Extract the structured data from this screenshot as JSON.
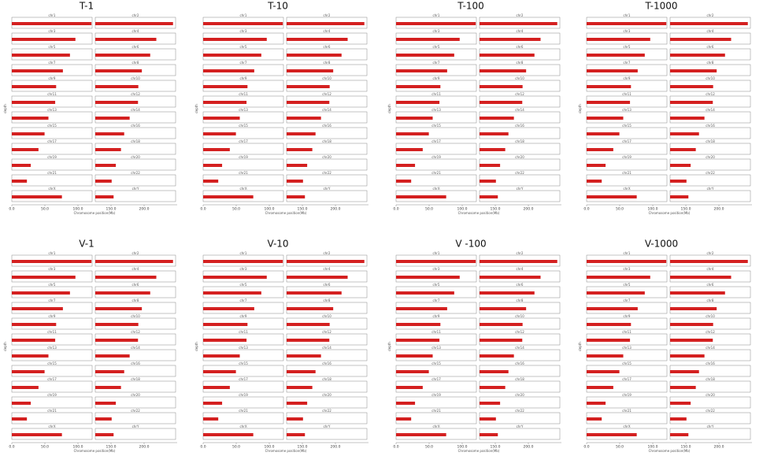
{
  "chart_data": [
    {
      "type": "bar",
      "title": "T-1",
      "xlabel": "Chromosome position(Mb)",
      "ylabel": "depth",
      "color": "#d42020",
      "xlim": [
        0,
        250
      ],
      "xticks": [
        {
          "value": 0,
          "label": "0.0"
        },
        {
          "value": 50,
          "label": "50.0"
        },
        {
          "value": 100,
          "label": "100.0"
        },
        {
          "value": 150,
          "label": "150.0"
        },
        {
          "value": 200,
          "label": "200.0"
        }
      ],
      "categories": [
        "chr1",
        "chr2",
        "chr3",
        "chr4",
        "chr5",
        "chr6",
        "chr7",
        "chr8",
        "chr9",
        "chr10",
        "chr11",
        "chr12",
        "chr13",
        "chr14",
        "chr15",
        "chr16",
        "chr17",
        "chr18",
        "chr19",
        "chr20",
        "chr21",
        "chr22",
        "chrX",
        "chrY"
      ],
      "values": [
        248,
        242,
        198,
        190,
        181,
        171,
        159,
        145,
        138,
        134,
        135,
        133,
        114,
        107,
        102,
        90,
        83,
        80,
        59,
        64,
        47,
        51,
        156,
        57
      ]
    },
    {
      "type": "bar",
      "title": "T-10",
      "xlabel": "Chromosome position(Mb)",
      "ylabel": "depth",
      "color": "#d42020",
      "xlim": [
        0,
        250
      ],
      "xticks": [
        {
          "value": 0,
          "label": "0.0"
        },
        {
          "value": 50,
          "label": "50.0"
        },
        {
          "value": 100,
          "label": "100.0"
        },
        {
          "value": 150,
          "label": "150.0"
        },
        {
          "value": 200,
          "label": "200.0"
        }
      ],
      "categories": [
        "chr1",
        "chr2",
        "chr3",
        "chr4",
        "chr5",
        "chr6",
        "chr7",
        "chr8",
        "chr9",
        "chr10",
        "chr11",
        "chr12",
        "chr13",
        "chr14",
        "chr15",
        "chr16",
        "chr17",
        "chr18",
        "chr19",
        "chr20",
        "chr21",
        "chr22",
        "chrX",
        "chrY"
      ],
      "values": [
        248,
        242,
        198,
        190,
        181,
        171,
        159,
        145,
        138,
        134,
        135,
        133,
        114,
        107,
        102,
        90,
        83,
        80,
        59,
        64,
        47,
        51,
        156,
        57
      ]
    },
    {
      "type": "bar",
      "title": "T-100",
      "xlabel": "Chromosome position(Mb)",
      "ylabel": "depth",
      "color": "#d42020",
      "xlim": [
        0,
        250
      ],
      "xticks": [
        {
          "value": 0,
          "label": "0.0"
        },
        {
          "value": 50,
          "label": "50.0"
        },
        {
          "value": 100,
          "label": "100.0"
        },
        {
          "value": 150,
          "label": "150.0"
        },
        {
          "value": 200,
          "label": "200.0"
        }
      ],
      "categories": [
        "chr1",
        "chr2",
        "chr3",
        "chr4",
        "chr5",
        "chr6",
        "chr7",
        "chr8",
        "chr9",
        "chr10",
        "chr11",
        "chr12",
        "chr13",
        "chr14",
        "chr15",
        "chr16",
        "chr17",
        "chr18",
        "chr19",
        "chr20",
        "chr21",
        "chr22",
        "chrX",
        "chrY"
      ],
      "values": [
        248,
        242,
        198,
        190,
        181,
        171,
        159,
        145,
        138,
        134,
        135,
        133,
        114,
        107,
        102,
        90,
        83,
        80,
        59,
        64,
        47,
        51,
        156,
        57
      ]
    },
    {
      "type": "bar",
      "title": "T-1000",
      "xlabel": "Chromosome position(Mb)",
      "ylabel": "depth",
      "color": "#d42020",
      "xlim": [
        0,
        250
      ],
      "xticks": [
        {
          "value": 0,
          "label": "0.0"
        },
        {
          "value": 50,
          "label": "50.0"
        },
        {
          "value": 100,
          "label": "100.0"
        },
        {
          "value": 150,
          "label": "150.0"
        },
        {
          "value": 200,
          "label": "200.0"
        }
      ],
      "categories": [
        "chr1",
        "chr2",
        "chr3",
        "chr4",
        "chr5",
        "chr6",
        "chr7",
        "chr8",
        "chr9",
        "chr10",
        "chr11",
        "chr12",
        "chr13",
        "chr14",
        "chr15",
        "chr16",
        "chr17",
        "chr18",
        "chr19",
        "chr20",
        "chr21",
        "chr22",
        "chrX",
        "chrY"
      ],
      "values": [
        248,
        242,
        198,
        190,
        181,
        171,
        159,
        145,
        138,
        134,
        135,
        133,
        114,
        107,
        102,
        90,
        83,
        80,
        59,
        64,
        47,
        51,
        156,
        57
      ]
    },
    {
      "type": "bar",
      "title": "V-1",
      "xlabel": "Chromosome position(Mb)",
      "ylabel": "depth",
      "color": "#d42020",
      "xlim": [
        0,
        250
      ],
      "xticks": [
        {
          "value": 0,
          "label": "0.0"
        },
        {
          "value": 50,
          "label": "50.0"
        },
        {
          "value": 100,
          "label": "100.0"
        },
        {
          "value": 150,
          "label": "150.0"
        },
        {
          "value": 200,
          "label": "200.0"
        }
      ],
      "categories": [
        "chr1",
        "chr2",
        "chr3",
        "chr4",
        "chr5",
        "chr6",
        "chr7",
        "chr8",
        "chr9",
        "chr10",
        "chr11",
        "chr12",
        "chr13",
        "chr14",
        "chr15",
        "chr16",
        "chr17",
        "chr18",
        "chr19",
        "chr20",
        "chr21",
        "chr22",
        "chrX",
        "chrY"
      ],
      "values": [
        248,
        242,
        198,
        190,
        181,
        171,
        159,
        145,
        138,
        134,
        135,
        133,
        114,
        107,
        102,
        90,
        83,
        80,
        59,
        64,
        47,
        51,
        156,
        57
      ]
    },
    {
      "type": "bar",
      "title": "V-10",
      "xlabel": "Chromosome position(Mb)",
      "ylabel": "depth",
      "color": "#d42020",
      "xlim": [
        0,
        250
      ],
      "xticks": [
        {
          "value": 0,
          "label": "0.0"
        },
        {
          "value": 50,
          "label": "50.0"
        },
        {
          "value": 100,
          "label": "100.0"
        },
        {
          "value": 150,
          "label": "150.0"
        },
        {
          "value": 200,
          "label": "200.0"
        }
      ],
      "categories": [
        "chr1",
        "chr2",
        "chr3",
        "chr4",
        "chr5",
        "chr6",
        "chr7",
        "chr8",
        "chr9",
        "chr10",
        "chr11",
        "chr12",
        "chr13",
        "chr14",
        "chr15",
        "chr16",
        "chr17",
        "chr18",
        "chr19",
        "chr20",
        "chr21",
        "chr22",
        "chrX",
        "chrY"
      ],
      "values": [
        248,
        242,
        198,
        190,
        181,
        171,
        159,
        145,
        138,
        134,
        135,
        133,
        114,
        107,
        102,
        90,
        83,
        80,
        59,
        64,
        47,
        51,
        156,
        57
      ]
    },
    {
      "type": "bar",
      "title": "V -100",
      "xlabel": "Chromosome position(Mb)",
      "ylabel": "depth",
      "color": "#d42020",
      "xlim": [
        0,
        250
      ],
      "xticks": [
        {
          "value": 0,
          "label": "0.0"
        },
        {
          "value": 50,
          "label": "50.0"
        },
        {
          "value": 100,
          "label": "100.0"
        },
        {
          "value": 150,
          "label": "150.0"
        },
        {
          "value": 200,
          "label": "200.0"
        }
      ],
      "categories": [
        "chr1",
        "chr2",
        "chr3",
        "chr4",
        "chr5",
        "chr6",
        "chr7",
        "chr8",
        "chr9",
        "chr10",
        "chr11",
        "chr12",
        "chr13",
        "chr14",
        "chr15",
        "chr16",
        "chr17",
        "chr18",
        "chr19",
        "chr20",
        "chr21",
        "chr22",
        "chrX",
        "chrY"
      ],
      "values": [
        248,
        242,
        198,
        190,
        181,
        171,
        159,
        145,
        138,
        134,
        135,
        133,
        114,
        107,
        102,
        90,
        83,
        80,
        59,
        64,
        47,
        51,
        156,
        57
      ]
    },
    {
      "type": "bar",
      "title": "V-1000",
      "xlabel": "Chromosome position(Mb)",
      "ylabel": "depth",
      "color": "#d42020",
      "xlim": [
        0,
        250
      ],
      "xticks": [
        {
          "value": 0,
          "label": "0.0"
        },
        {
          "value": 50,
          "label": "50.0"
        },
        {
          "value": 100,
          "label": "100.0"
        },
        {
          "value": 150,
          "label": "150.0"
        },
        {
          "value": 200,
          "label": "200.0"
        }
      ],
      "categories": [
        "chr1",
        "chr2",
        "chr3",
        "chr4",
        "chr5",
        "chr6",
        "chr7",
        "chr8",
        "chr9",
        "chr10",
        "chr11",
        "chr12",
        "chr13",
        "chr14",
        "chr15",
        "chr16",
        "chr17",
        "chr18",
        "chr19",
        "chr20",
        "chr21",
        "chr22",
        "chrX",
        "chrY"
      ],
      "values": [
        248,
        242,
        198,
        190,
        181,
        171,
        159,
        145,
        138,
        134,
        135,
        133,
        114,
        107,
        102,
        90,
        83,
        80,
        59,
        64,
        47,
        51,
        156,
        57
      ]
    }
  ]
}
